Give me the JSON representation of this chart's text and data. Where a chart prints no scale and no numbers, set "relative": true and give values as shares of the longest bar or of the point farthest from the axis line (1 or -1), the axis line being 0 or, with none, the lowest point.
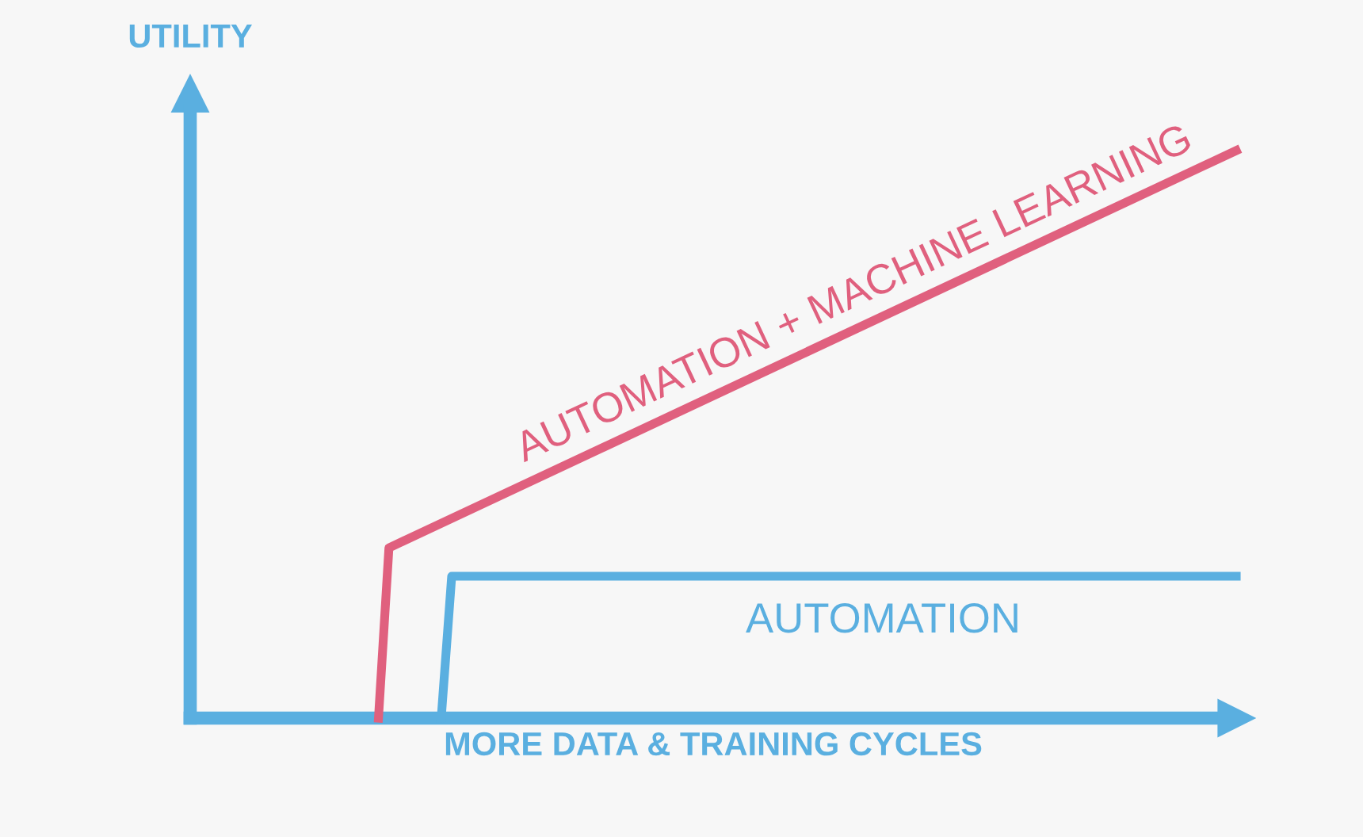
{
  "chart_data": {
    "type": "line",
    "relative": true,
    "xlabel": "MORE DATA & TRAINING CYCLES",
    "ylabel": "UTILITY",
    "tick_labels": false,
    "ref_lines": [
      {
        "axis": "y",
        "value": 0,
        "color": "#5aafe0",
        "line_style": "solid"
      }
    ],
    "legend": false,
    "marker": "none",
    "line_style": "solid",
    "categories": [
      null,
      null,
      null,
      null,
      null,
      null,
      null,
      null,
      null,
      null,
      null,
      null,
      null,
      null,
      null,
      null,
      null,
      null,
      null,
      null,
      null,
      null,
      null,
      null,
      null,
      null,
      null,
      null,
      null,
      null,
      null,
      null,
      null,
      null,
      null,
      null,
      null,
      null,
      null,
      null,
      null,
      null,
      null,
      null,
      null,
      null,
      null,
      null,
      null,
      null,
      null,
      null,
      null,
      null,
      null,
      null,
      null,
      null,
      null,
      null,
      null,
      null,
      null,
      null,
      null,
      null,
      null,
      null,
      null,
      null,
      null,
      null,
      null,
      null,
      null,
      null,
      null,
      null,
      null,
      null,
      null,
      null,
      null,
      null,
      null,
      null,
      null,
      null,
      null,
      null,
      null,
      null,
      null,
      null,
      null,
      null,
      null,
      null,
      null,
      null,
      null
    ],
    "series": [
      {
        "name": "AUTOMATION + MACHINE LEARNING",
        "color": "#e0607e",
        "values": [
          null,
          null,
          null,
          null,
          null,
          null,
          null,
          null,
          null,
          null,
          null,
          null,
          null,
          null,
          null,
          null,
          null,
          null,
          0,
          0.3,
          null,
          null,
          null,
          null,
          null,
          null,
          null,
          null,
          null,
          null,
          null,
          null,
          null,
          null,
          null,
          null,
          null,
          null,
          null,
          null,
          null,
          null,
          null,
          null,
          null,
          null,
          null,
          null,
          null,
          null,
          null,
          null,
          null,
          null,
          null,
          null,
          null,
          null,
          null,
          null,
          null,
          null,
          null,
          null,
          null,
          null,
          null,
          null,
          null,
          null,
          null,
          null,
          null,
          null,
          null,
          null,
          null,
          null,
          null,
          null,
          null,
          null,
          null,
          null,
          null,
          null,
          null,
          null,
          null,
          null,
          null,
          null,
          null,
          null,
          null,
          null,
          null,
          null,
          null,
          null,
          1.0
        ]
      },
      {
        "name": "AUTOMATION",
        "color": "#5aafe0",
        "values": [
          null,
          null,
          null,
          null,
          null,
          null,
          null,
          null,
          null,
          null,
          null,
          null,
          null,
          null,
          null,
          null,
          null,
          null,
          null,
          null,
          null,
          null,
          null,
          null,
          0,
          0.25,
          null,
          null,
          null,
          null,
          null,
          null,
          null,
          null,
          null,
          null,
          null,
          null,
          null,
          null,
          null,
          null,
          null,
          null,
          null,
          null,
          null,
          null,
          null,
          null,
          null,
          null,
          null,
          null,
          null,
          null,
          null,
          null,
          null,
          null,
          null,
          null,
          null,
          null,
          null,
          null,
          null,
          null,
          null,
          null,
          null,
          null,
          null,
          null,
          null,
          null,
          null,
          null,
          null,
          null,
          null,
          null,
          null,
          null,
          null,
          null,
          null,
          null,
          null,
          null,
          null,
          null,
          null,
          null,
          null,
          null,
          null,
          null,
          null,
          null,
          0.25
        ]
      }
    ]
  }
}
